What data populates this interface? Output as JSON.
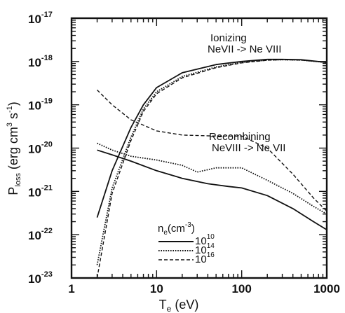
{
  "chart_data": {
    "type": "line",
    "x_scale": "log",
    "y_scale": "log",
    "xlim": [
      1,
      1000
    ],
    "ylim": [
      1e-23,
      1e-17
    ],
    "xlabel": {
      "main": "T",
      "sub": "e",
      "rest": " (eV)"
    },
    "ylabel": {
      "main": "P",
      "sub": "loss",
      "rest": " (erg cm",
      "sup1": "3",
      "mid": " s",
      "sup2": "-1",
      "end": ")"
    },
    "x_ticks": [
      {
        "value": 1,
        "label": "1"
      },
      {
        "value": 10,
        "label": "10"
      },
      {
        "value": 100,
        "label": "100"
      },
      {
        "value": 1000,
        "label": "1000"
      }
    ],
    "y_ticks": [
      {
        "value": 1e-23,
        "base": "10",
        "exp": "-23"
      },
      {
        "value": 1e-22,
        "base": "10",
        "exp": "-22"
      },
      {
        "value": 1e-21,
        "base": "10",
        "exp": "-21"
      },
      {
        "value": 1e-20,
        "base": "10",
        "exp": "-20"
      },
      {
        "value": 1e-19,
        "base": "10",
        "exp": "-19"
      },
      {
        "value": 1e-18,
        "base": "10",
        "exp": "-18"
      },
      {
        "value": 1e-17,
        "base": "10",
        "exp": "-17"
      }
    ],
    "annotations": [
      {
        "lines": [
          "Ionizing",
          "NeVII -> Ne VIII"
        ],
        "x": 30,
        "y": 2.5e-18
      },
      {
        "lines": [
          "Recombining",
          "NeVIII -> Ne VII"
        ],
        "x": 30,
        "y": 1.5e-20
      }
    ],
    "legend": {
      "title": "n",
      "title_sub": "e",
      "title_rest": "(cm",
      "title_sup": "-3",
      "title_end": ")",
      "entries": [
        {
          "base": "10",
          "exp": "10",
          "style": "solid"
        },
        {
          "base": "10",
          "exp": "14",
          "style": "dotted"
        },
        {
          "base": "10",
          "exp": "16",
          "style": "dashed"
        }
      ]
    },
    "series": [
      {
        "group": "ionizing",
        "style": "solid",
        "points": [
          [
            2,
            2.5e-22
          ],
          [
            3,
            3e-21
          ],
          [
            5,
            3e-20
          ],
          [
            7,
            1e-19
          ],
          [
            10,
            2.5e-19
          ],
          [
            20,
            5.5e-19
          ],
          [
            50,
            8.5e-19
          ],
          [
            100,
            1e-18
          ],
          [
            200,
            1.12e-18
          ],
          [
            300,
            1.12e-18
          ],
          [
            500,
            1.1e-18
          ],
          [
            1000,
            9.5e-19
          ]
        ]
      },
      {
        "group": "ionizing",
        "style": "dotted",
        "points": [
          [
            2,
            2e-23
          ],
          [
            3,
            1.2e-21
          ],
          [
            5,
            1.8e-20
          ],
          [
            7,
            8e-20
          ],
          [
            10,
            2e-19
          ],
          [
            20,
            4.5e-19
          ],
          [
            50,
            7.5e-19
          ],
          [
            100,
            9.5e-19
          ],
          [
            200,
            1.08e-18
          ],
          [
            300,
            1.1e-18
          ],
          [
            500,
            1.08e-18
          ],
          [
            1000,
            9.5e-19
          ]
        ]
      },
      {
        "group": "ionizing",
        "style": "dashed",
        "points": [
          [
            2,
            1e-23
          ],
          [
            3,
            9e-22
          ],
          [
            5,
            1.5e-20
          ],
          [
            7,
            7e-20
          ],
          [
            10,
            1.8e-19
          ],
          [
            20,
            4.2e-19
          ],
          [
            50,
            7.2e-19
          ],
          [
            100,
            9.3e-19
          ],
          [
            200,
            1.07e-18
          ],
          [
            300,
            1.1e-18
          ],
          [
            500,
            1.08e-18
          ],
          [
            1000,
            9.5e-19
          ]
        ]
      },
      {
        "group": "recombining",
        "style": "solid",
        "points": [
          [
            2,
            9e-21
          ],
          [
            3,
            7e-21
          ],
          [
            5,
            5e-21
          ],
          [
            10,
            3e-21
          ],
          [
            20,
            2e-21
          ],
          [
            40,
            1.5e-21
          ],
          [
            70,
            1.3e-21
          ],
          [
            100,
            1.2e-21
          ],
          [
            200,
            8e-22
          ],
          [
            400,
            4e-22
          ],
          [
            700,
            2e-22
          ],
          [
            1000,
            1.3e-22
          ]
        ]
      },
      {
        "group": "recombining",
        "style": "dotted",
        "points": [
          [
            2,
            1.3e-20
          ],
          [
            3,
            9e-21
          ],
          [
            5,
            6.5e-21
          ],
          [
            10,
            5.3e-21
          ],
          [
            20,
            4e-21
          ],
          [
            30,
            2.8e-21
          ],
          [
            50,
            3.5e-21
          ],
          [
            100,
            3.5e-21
          ],
          [
            200,
            1.8e-21
          ],
          [
            400,
            9e-22
          ],
          [
            700,
            4.5e-22
          ],
          [
            1000,
            3e-22
          ]
        ]
      },
      {
        "group": "recombining",
        "style": "dashed",
        "points": [
          [
            2,
            2.2e-19
          ],
          [
            3,
            1e-19
          ],
          [
            5,
            4.5e-20
          ],
          [
            10,
            2.5e-20
          ],
          [
            20,
            2e-20
          ],
          [
            50,
            1.9e-20
          ],
          [
            100,
            1.9e-20
          ],
          [
            200,
            1e-20
          ],
          [
            400,
            2.5e-21
          ],
          [
            700,
            7e-22
          ],
          [
            1000,
            3.5e-22
          ]
        ]
      }
    ]
  }
}
